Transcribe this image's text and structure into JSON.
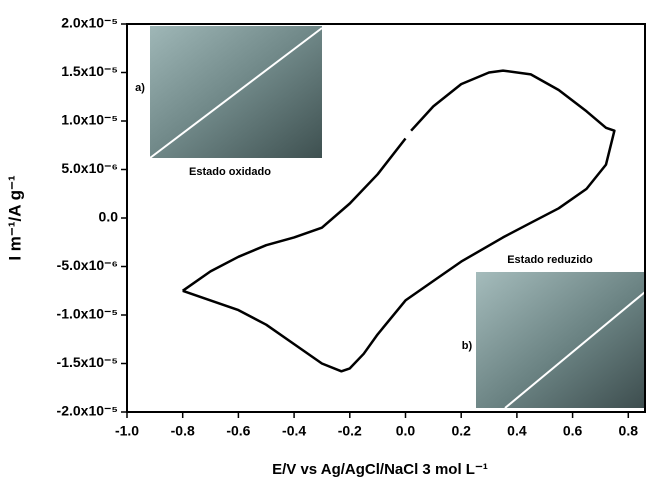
{
  "chart_data": {
    "type": "line",
    "xlabel": "E/V vs Ag/AgCl/NaCl 3 mol L⁻¹",
    "ylabel": "I m⁻¹/A g⁻¹",
    "annotations": [
      "a)",
      "Estado oxidado",
      "b)",
      "Estado reduzido"
    ],
    "xlim": [
      -1.0,
      0.86
    ],
    "ylim": [
      -2e-05,
      2e-05
    ],
    "xticks": [
      {
        "value": -1.0,
        "label": "-1.0"
      },
      -0.8,
      -0.6,
      -0.4,
      -0.2,
      {
        "value": 0,
        "label": "0.0"
      },
      0.2,
      0.4,
      0.6,
      0.8
    ],
    "yticks": [
      {
        "value": 2e-05,
        "label": "2.0x10⁻⁵"
      },
      {
        "value": 1.5e-05,
        "label": "1.5x10⁻⁵"
      },
      {
        "value": 1e-05,
        "label": "1.0x10⁻⁵"
      },
      {
        "value": 5e-06,
        "label": "5.0x10⁻⁶"
      },
      {
        "value": 0,
        "label": "0.0"
      },
      {
        "value": -5e-06,
        "label": "-5.0x10⁻⁶"
      },
      {
        "value": -1e-05,
        "label": "-1.0x10⁻⁵"
      },
      {
        "value": -1.5e-05,
        "label": "-1.5x10⁻⁵"
      },
      {
        "value": -2e-05,
        "label": "-2.0x10⁻⁵"
      }
    ],
    "series": [
      {
        "color": "#000000",
        "x": [
          -0.8,
          -0.7,
          -0.6,
          -0.5,
          -0.4,
          -0.3,
          -0.2,
          -0.1,
          0.0,
          0.01,
          0.02,
          0.1,
          0.2,
          0.3,
          0.35,
          0.45,
          0.55,
          0.65,
          0.72,
          0.75,
          0.72,
          0.65,
          0.55,
          0.45,
          0.35,
          0.2,
          0.1,
          0.0,
          -0.1,
          -0.15,
          -0.2,
          -0.23,
          -0.3,
          -0.4,
          -0.5,
          -0.6,
          -0.7,
          -0.8
        ],
        "values": [
          -7.5e-06,
          -5.5e-06,
          -4e-06,
          -2.8e-06,
          -2e-06,
          -1e-06,
          1.5e-06,
          4.5e-06,
          8.2e-06,
          null,
          9e-06,
          1.15e-05,
          1.38e-05,
          1.5e-05,
          1.52e-05,
          1.48e-05,
          1.32e-05,
          1.1e-05,
          9.3e-06,
          9e-06,
          5.5e-06,
          3e-06,
          1e-06,
          -5e-07,
          -2e-06,
          -4.5e-06,
          -6.5e-06,
          -8.5e-06,
          -1.2e-05,
          -1.4e-05,
          -1.55e-05,
          -1.58e-05,
          -1.5e-05,
          -1.3e-05,
          -1.1e-05,
          -9.5e-06,
          -8.5e-06,
          -7.5e-06
        ]
      }
    ]
  }
}
